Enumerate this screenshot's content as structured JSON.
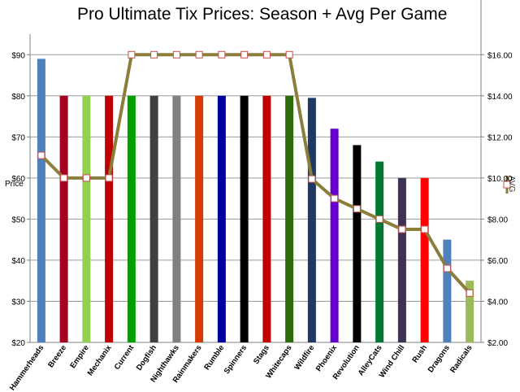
{
  "chart_data": {
    "type": "bar",
    "title": "Pro Ultimate Tix Prices: Season + Avg Per Game",
    "ylabel": "Price",
    "y2label": "AVG",
    "ylim": [
      20,
      95
    ],
    "y2lim": [
      2,
      17
    ],
    "yticks": [
      "$20",
      "$30",
      "$40",
      "$50",
      "$60",
      "$70",
      "$80",
      "$90"
    ],
    "y2ticks": [
      "$2.00",
      "$4.00",
      "$6.00",
      "$8.00",
      "$10.00",
      "$12.00",
      "$14.00",
      "$16.00"
    ],
    "categories": [
      "Hammerheads",
      "Breeze",
      "Empire",
      "Mechanix",
      "Current",
      "Dogfish",
      "Nighthawks",
      "Rainmakers",
      "Rumble",
      "Spinners",
      "Stags",
      "Whitecaps",
      "Wildfire",
      "Phoenix",
      "Revolution",
      "AlleyCats",
      "Wind Chill",
      "Rush",
      "Dragons",
      "Radicals"
    ],
    "series": [
      {
        "name": "Price",
        "type": "bar",
        "values": [
          89,
          80,
          80,
          80,
          80,
          80,
          80,
          80,
          80,
          80,
          80,
          80,
          79.5,
          72,
          68,
          64,
          60,
          60,
          45,
          35
        ],
        "colors": [
          "#4f81bd",
          "#a50021",
          "#92d050",
          "#c00000",
          "#00a000",
          "#404040",
          "#808080",
          "#d83b01",
          "#0000a0",
          "#000000",
          "#c00000",
          "#2e6b0a",
          "#1f3864",
          "#6600cc",
          "#000000",
          "#007a33",
          "#3f3151",
          "#ff0000",
          "#4f81bd",
          "#9bbb59"
        ]
      },
      {
        "name": "AVG",
        "type": "line",
        "values": [
          11.1,
          10.0,
          10.0,
          10.0,
          16.0,
          16.0,
          16.0,
          16.0,
          16.0,
          16.0,
          16.0,
          16.0,
          9.95,
          9.0,
          8.5,
          8.0,
          7.5,
          7.5,
          5.6,
          4.4
        ],
        "color": "#8b7d3a"
      }
    ],
    "grid": true,
    "legend": "right"
  }
}
